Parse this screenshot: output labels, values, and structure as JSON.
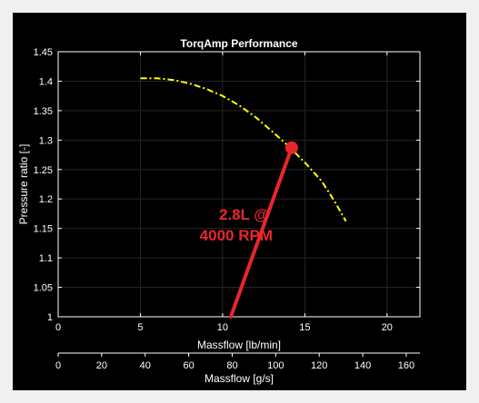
{
  "chart_data": {
    "type": "line",
    "title": "TorqAmp Performance",
    "xlabel": "Massflow [lb/min]",
    "ylabel": "Pressure ratio [-]",
    "xlim": [
      0,
      22
    ],
    "ylim": [
      1,
      1.45
    ],
    "xticks": [
      "0",
      "5",
      "10",
      "15",
      "20"
    ],
    "yticks": [
      "1",
      "1.05",
      "1.1",
      "1.15",
      "1.2",
      "1.25",
      "1.3",
      "1.35",
      "1.4",
      "1.45"
    ],
    "x2label": "Massflow [g/s]",
    "x2lim": [
      0,
      166.3
    ],
    "x2ticks": [
      "0",
      "20",
      "40",
      "60",
      "80",
      "100",
      "120",
      "140",
      "160"
    ],
    "grid": true,
    "series": [
      {
        "color": "#ffff00",
        "style": "dash-dot",
        "x": [
          5.0,
          6.0,
          7.0,
          8.0,
          9.0,
          10.0,
          11.0,
          12.0,
          13.0,
          14.0,
          15.0,
          16.0,
          16.5,
          17.0,
          17.5
        ],
        "y": [
          1.405,
          1.405,
          1.402,
          1.396,
          1.387,
          1.375,
          1.359,
          1.339,
          1.315,
          1.29,
          1.262,
          1.231,
          1.21,
          1.187,
          1.162
        ]
      }
    ],
    "annotation": {
      "lines": [
        "2.8L @",
        "4000 RPM"
      ],
      "color": "#e8262c",
      "point": {
        "x": 14.2,
        "y": 1.287
      },
      "line_start": {
        "x": 10.5,
        "y": 1.0
      }
    }
  }
}
